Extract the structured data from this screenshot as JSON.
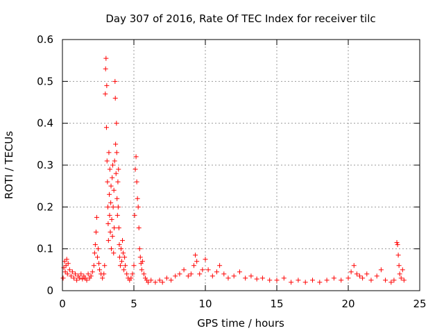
{
  "chart_data": {
    "type": "scatter",
    "title": "Day 307 of 2016, Rate Of TEC Index for receiver tilc",
    "xlabel": "GPS time / hours",
    "ylabel": "ROTI / TECUs",
    "xlim": [
      0,
      25
    ],
    "ylim": [
      0,
      0.6
    ],
    "xticks": [
      0,
      5,
      10,
      15,
      20,
      25
    ],
    "xtick_labels": [
      "0",
      "5",
      "10",
      "15",
      "20",
      "25"
    ],
    "yticks": [
      0,
      0.1,
      0.2,
      0.3,
      0.4,
      0.5,
      0.6
    ],
    "ytick_labels": [
      "0",
      "0.1",
      "0.2",
      "0.3",
      "0.4",
      "0.5",
      "0.6"
    ],
    "grid": true,
    "marker": "plus",
    "series": [
      {
        "name": "ROTI",
        "color": "#ff0000",
        "points": [
          [
            0.05,
            0.03
          ],
          [
            0.1,
            0.055
          ],
          [
            0.15,
            0.07
          ],
          [
            0.2,
            0.045
          ],
          [
            0.25,
            0.06
          ],
          [
            0.3,
            0.075
          ],
          [
            0.35,
            0.04
          ],
          [
            0.4,
            0.065
          ],
          [
            0.5,
            0.05
          ],
          [
            0.6,
            0.035
          ],
          [
            0.7,
            0.045
          ],
          [
            0.8,
            0.03
          ],
          [
            0.9,
            0.04
          ],
          [
            1.0,
            0.025
          ],
          [
            1.1,
            0.035
          ],
          [
            1.2,
            0.03
          ],
          [
            1.3,
            0.04
          ],
          [
            1.4,
            0.028
          ],
          [
            1.5,
            0.035
          ],
          [
            1.6,
            0.03
          ],
          [
            1.7,
            0.025
          ],
          [
            1.8,
            0.04
          ],
          [
            1.9,
            0.03
          ],
          [
            2.0,
            0.035
          ],
          [
            2.1,
            0.045
          ],
          [
            2.2,
            0.06
          ],
          [
            2.25,
            0.09
          ],
          [
            2.3,
            0.11
          ],
          [
            2.35,
            0.14
          ],
          [
            2.4,
            0.175
          ],
          [
            2.45,
            0.08
          ],
          [
            2.5,
            0.1
          ],
          [
            2.55,
            0.065
          ],
          [
            2.6,
            0.05
          ],
          [
            2.7,
            0.04
          ],
          [
            2.8,
            0.03
          ],
          [
            2.9,
            0.04
          ],
          [
            2.95,
            0.06
          ],
          [
            3.0,
            0.47
          ],
          [
            3.02,
            0.53
          ],
          [
            3.05,
            0.555
          ],
          [
            3.08,
            0.39
          ],
          [
            3.1,
            0.49
          ],
          [
            3.12,
            0.31
          ],
          [
            3.15,
            0.26
          ],
          [
            3.18,
            0.2
          ],
          [
            3.2,
            0.16
          ],
          [
            3.22,
            0.12
          ],
          [
            3.25,
            0.33
          ],
          [
            3.28,
            0.23
          ],
          [
            3.3,
            0.18
          ],
          [
            3.32,
            0.29
          ],
          [
            3.35,
            0.14
          ],
          [
            3.38,
            0.21
          ],
          [
            3.4,
            0.25
          ],
          [
            3.42,
            0.1
          ],
          [
            3.45,
            0.17
          ],
          [
            3.48,
            0.27
          ],
          [
            3.5,
            0.13
          ],
          [
            3.52,
            0.3
          ],
          [
            3.55,
            0.2
          ],
          [
            3.58,
            0.09
          ],
          [
            3.6,
            0.24
          ],
          [
            3.62,
            0.15
          ],
          [
            3.65,
            0.31
          ],
          [
            3.68,
            0.5
          ],
          [
            3.7,
            0.46
          ],
          [
            3.72,
            0.35
          ],
          [
            3.75,
            0.28
          ],
          [
            3.78,
            0.4
          ],
          [
            3.8,
            0.33
          ],
          [
            3.82,
            0.22
          ],
          [
            3.85,
            0.18
          ],
          [
            3.88,
            0.26
          ],
          [
            3.9,
            0.2
          ],
          [
            3.92,
            0.29
          ],
          [
            3.95,
            0.15
          ],
          [
            3.98,
            0.11
          ],
          [
            4.0,
            0.08
          ],
          [
            4.05,
            0.06
          ],
          [
            4.1,
            0.1
          ],
          [
            4.15,
            0.07
          ],
          [
            4.2,
            0.12
          ],
          [
            4.25,
            0.09
          ],
          [
            4.3,
            0.05
          ],
          [
            4.35,
            0.08
          ],
          [
            4.4,
            0.06
          ],
          [
            4.5,
            0.04
          ],
          [
            4.6,
            0.03
          ],
          [
            4.7,
            0.025
          ],
          [
            4.8,
            0.03
          ],
          [
            4.9,
            0.04
          ],
          [
            5.0,
            0.06
          ],
          [
            5.05,
            0.18
          ],
          [
            5.1,
            0.29
          ],
          [
            5.15,
            0.32
          ],
          [
            5.2,
            0.26
          ],
          [
            5.25,
            0.22
          ],
          [
            5.3,
            0.2
          ],
          [
            5.35,
            0.15
          ],
          [
            5.4,
            0.1
          ],
          [
            5.45,
            0.08
          ],
          [
            5.5,
            0.065
          ],
          [
            5.55,
            0.05
          ],
          [
            5.6,
            0.07
          ],
          [
            5.7,
            0.04
          ],
          [
            5.8,
            0.03
          ],
          [
            5.9,
            0.025
          ],
          [
            6.0,
            0.02
          ],
          [
            6.2,
            0.025
          ],
          [
            6.5,
            0.02
          ],
          [
            6.8,
            0.025
          ],
          [
            7.0,
            0.02
          ],
          [
            7.3,
            0.03
          ],
          [
            7.6,
            0.025
          ],
          [
            7.9,
            0.035
          ],
          [
            8.2,
            0.04
          ],
          [
            8.5,
            0.05
          ],
          [
            8.8,
            0.035
          ],
          [
            9.0,
            0.04
          ],
          [
            9.2,
            0.06
          ],
          [
            9.3,
            0.085
          ],
          [
            9.4,
            0.07
          ],
          [
            9.6,
            0.04
          ],
          [
            9.8,
            0.05
          ],
          [
            10.0,
            0.075
          ],
          [
            10.2,
            0.05
          ],
          [
            10.5,
            0.035
          ],
          [
            10.8,
            0.045
          ],
          [
            11.0,
            0.06
          ],
          [
            11.3,
            0.04
          ],
          [
            11.6,
            0.03
          ],
          [
            12.0,
            0.035
          ],
          [
            12.4,
            0.045
          ],
          [
            12.8,
            0.03
          ],
          [
            13.2,
            0.035
          ],
          [
            13.6,
            0.028
          ],
          [
            14.0,
            0.03
          ],
          [
            14.5,
            0.025
          ],
          [
            15.0,
            0.025
          ],
          [
            15.5,
            0.03
          ],
          [
            16.0,
            0.02
          ],
          [
            16.5,
            0.025
          ],
          [
            17.0,
            0.02
          ],
          [
            17.5,
            0.025
          ],
          [
            18.0,
            0.02
          ],
          [
            18.5,
            0.025
          ],
          [
            19.0,
            0.03
          ],
          [
            19.5,
            0.025
          ],
          [
            20.0,
            0.03
          ],
          [
            20.2,
            0.045
          ],
          [
            20.4,
            0.06
          ],
          [
            20.6,
            0.04
          ],
          [
            20.8,
            0.035
          ],
          [
            21.0,
            0.03
          ],
          [
            21.3,
            0.04
          ],
          [
            21.6,
            0.025
          ],
          [
            22.0,
            0.035
          ],
          [
            22.3,
            0.05
          ],
          [
            22.6,
            0.025
          ],
          [
            23.0,
            0.02
          ],
          [
            23.2,
            0.025
          ],
          [
            23.4,
            0.115
          ],
          [
            23.45,
            0.11
          ],
          [
            23.5,
            0.085
          ],
          [
            23.55,
            0.06
          ],
          [
            23.6,
            0.04
          ],
          [
            23.7,
            0.03
          ],
          [
            23.8,
            0.05
          ],
          [
            23.9,
            0.025
          ]
        ]
      }
    ]
  }
}
